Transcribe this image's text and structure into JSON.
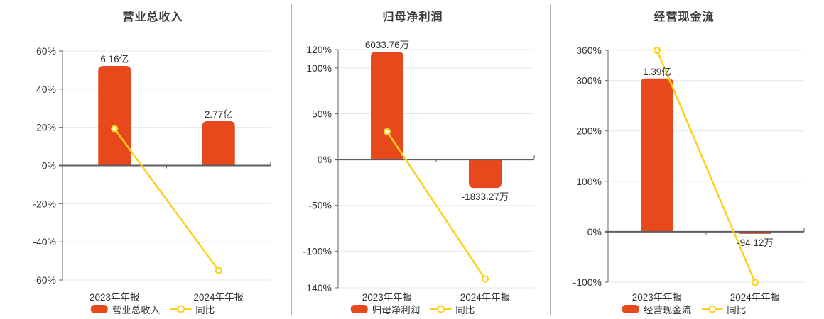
{
  "colors": {
    "bar": "#e7491d",
    "line": "#fcd01e",
    "grid": "#e3e8f3",
    "axis": "#666666",
    "zero_axis": "#5d5d66",
    "text": "#333333",
    "title": "#3b3b3b",
    "divider": "#b3b3b3",
    "background": "#ffffff"
  },
  "chart_data": [
    {
      "type": "bar+line",
      "title": "营业总收入",
      "categories": [
        "2023年年报",
        "2024年年报"
      ],
      "bar_series": {
        "name": "营业总收入",
        "value_labels": [
          "6.16亿",
          "2.77亿"
        ],
        "plotted_pct": [
          52.2,
          23.2
        ]
      },
      "line_series": {
        "name": "同比",
        "values_pct": [
          19.3,
          -55.03
        ]
      },
      "y_ticks_pct": [
        60,
        40,
        20,
        0,
        -20,
        -40,
        -60
      ],
      "y_range_pct": [
        -60,
        60
      ],
      "legend_position": "bottom",
      "grid": true
    },
    {
      "type": "bar+line",
      "title": "归母净利润",
      "categories": [
        "2023年年报",
        "2024年年报"
      ],
      "bar_series": {
        "name": "归母净利润",
        "value_labels": [
          "6033.76万",
          "-1833.27万"
        ],
        "plotted_pct": [
          117.6,
          -31
        ]
      },
      "line_series": {
        "name": "同比",
        "values_pct": [
          30.5,
          -130.38
        ]
      },
      "y_ticks_pct": [
        120,
        100,
        50,
        0,
        -50,
        -100,
        -140
      ],
      "y_range_pct": [
        -140,
        120
      ],
      "legend_position": "bottom",
      "grid": true
    },
    {
      "type": "bar+line",
      "title": "经营现金流",
      "categories": [
        "2023年年报",
        "2024年年报"
      ],
      "bar_series": {
        "name": "经营现金流",
        "value_labels": [
          "1.39亿",
          "-94.12万"
        ],
        "plotted_pct": [
          304,
          -0.68
        ]
      },
      "line_series": {
        "name": "同比",
        "values_pct": [
          360,
          -100.68
        ]
      },
      "y_ticks_pct": [
        360,
        300,
        200,
        100,
        0,
        -100
      ],
      "y_range_pct": [
        -100,
        360
      ],
      "legend_position": "bottom",
      "grid": true
    }
  ]
}
